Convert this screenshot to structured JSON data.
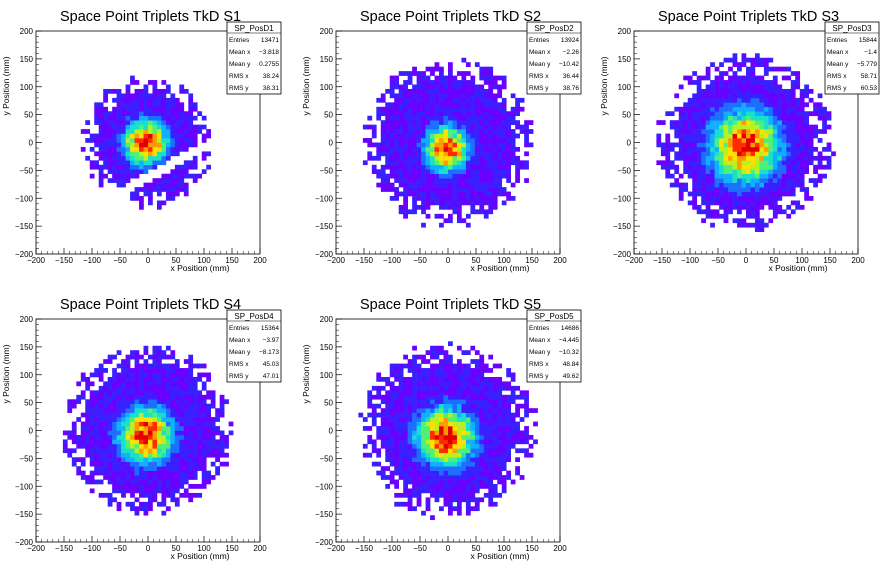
{
  "chart_data": [
    {
      "type": "heatmap",
      "title": "Space Point Triplets TkD S1",
      "xlabel": "x Position (mm)",
      "ylabel": "y Position (mm)",
      "xlim": [
        -200,
        200
      ],
      "ylim": [
        -200,
        200
      ],
      "x_ticks": [
        "−200",
        "−150",
        "−100",
        "−50",
        "0",
        "50",
        "100",
        "150",
        "200"
      ],
      "y_ticks": [
        "−200",
        "−150",
        "−100",
        "−50",
        "0",
        "50",
        "100",
        "150",
        "200"
      ],
      "grid": false,
      "legend_position": "top-right",
      "stats": {
        "name": "SP_PosD1",
        "rows": [
          {
            "label": "Entries",
            "value": "13471"
          },
          {
            "label": "Mean x",
            "value": "−3.818"
          },
          {
            "label": "Mean y",
            "value": "0.2755"
          },
          {
            "label": "RMS x",
            "value": "38.24"
          },
          {
            "label": "RMS y",
            "value": "38.31"
          }
        ]
      },
      "distribution": {
        "center_x": -3.818,
        "center_y": 0.2755,
        "rms_x": 38.24,
        "rms_y": 38.31,
        "radius": 115,
        "gap_band": true
      }
    },
    {
      "type": "heatmap",
      "title": "Space Point Triplets TkD S2",
      "xlabel": "x Position (mm)",
      "ylabel": "y Position (mm)",
      "xlim": [
        -200,
        200
      ],
      "ylim": [
        -200,
        200
      ],
      "x_ticks": [
        "−200",
        "−150",
        "−100",
        "−50",
        "0",
        "50",
        "100",
        "150",
        "200"
      ],
      "y_ticks": [
        "−200",
        "−150",
        "−100",
        "−50",
        "0",
        "50",
        "100",
        "150",
        "200"
      ],
      "grid": false,
      "legend_position": "top-right",
      "stats": {
        "name": "SP_PosD2",
        "rows": [
          {
            "label": "Entries",
            "value": "13924"
          },
          {
            "label": "Mean x",
            "value": "−2.26"
          },
          {
            "label": "Mean y",
            "value": "−10.42"
          },
          {
            "label": "RMS x",
            "value": "36.44"
          },
          {
            "label": "RMS y",
            "value": "38.76"
          }
        ]
      },
      "distribution": {
        "center_x": -2.26,
        "center_y": -10.42,
        "rms_x": 36.44,
        "rms_y": 38.76,
        "radius": 150,
        "gap_band": false
      }
    },
    {
      "type": "heatmap",
      "title": "Space Point Triplets TkD S3",
      "xlabel": "x Position (mm)",
      "ylabel": "y Position (mm)",
      "xlim": [
        -200,
        200
      ],
      "ylim": [
        -200,
        200
      ],
      "x_ticks": [
        "−200",
        "−150",
        "−100",
        "−50",
        "0",
        "50",
        "100",
        "150",
        "200"
      ],
      "y_ticks": [
        "−200",
        "−150",
        "−100",
        "−50",
        "0",
        "50",
        "100",
        "150",
        "200"
      ],
      "grid": false,
      "legend_position": "top-right",
      "stats": {
        "name": "SP_PosD3",
        "rows": [
          {
            "label": "Entries",
            "value": "15844"
          },
          {
            "label": "Mean x",
            "value": "−1.4"
          },
          {
            "label": "Mean y",
            "value": "−5.779"
          },
          {
            "label": "RMS x",
            "value": "58.71"
          },
          {
            "label": "RMS y",
            "value": "60.53"
          }
        ]
      },
      "distribution": {
        "center_x": -1.4,
        "center_y": -5.779,
        "rms_x": 58.71,
        "rms_y": 60.53,
        "radius": 155,
        "gap_band": false
      }
    },
    {
      "type": "heatmap",
      "title": "Space Point Triplets TkD S4",
      "xlabel": "x Position (mm)",
      "ylabel": "y Position (mm)",
      "xlim": [
        -200,
        200
      ],
      "ylim": [
        -200,
        200
      ],
      "x_ticks": [
        "−200",
        "−150",
        "−100",
        "−50",
        "0",
        "50",
        "100",
        "150",
        "200"
      ],
      "y_ticks": [
        "−200",
        "−150",
        "−100",
        "−50",
        "0",
        "50",
        "100",
        "150",
        "200"
      ],
      "grid": false,
      "legend_position": "top-right",
      "stats": {
        "name": "SP_PosD4",
        "rows": [
          {
            "label": "Entries",
            "value": "15364"
          },
          {
            "label": "Mean x",
            "value": "−3.97"
          },
          {
            "label": "Mean y",
            "value": "−8.173"
          },
          {
            "label": "RMS x",
            "value": "45.03"
          },
          {
            "label": "RMS y",
            "value": "47.01"
          }
        ]
      },
      "distribution": {
        "center_x": -3.97,
        "center_y": -8.173,
        "rms_x": 45.03,
        "rms_y": 47.01,
        "radius": 150,
        "gap_band": false
      }
    },
    {
      "type": "heatmap",
      "title": "Space Point Triplets TkD S5",
      "xlabel": "x Position (mm)",
      "ylabel": "y Position (mm)",
      "xlim": [
        -200,
        200
      ],
      "ylim": [
        -200,
        200
      ],
      "x_ticks": [
        "−200",
        "−150",
        "−100",
        "−50",
        "0",
        "50",
        "100",
        "150",
        "200"
      ],
      "y_ticks": [
        "−200",
        "−150",
        "−100",
        "−50",
        "0",
        "50",
        "100",
        "150",
        "200"
      ],
      "grid": false,
      "legend_position": "top-right",
      "stats": {
        "name": "SP_PosD5",
        "rows": [
          {
            "label": "Entries",
            "value": "14686"
          },
          {
            "label": "Mean x",
            "value": "−4.445"
          },
          {
            "label": "Mean y",
            "value": "−10.32"
          },
          {
            "label": "RMS x",
            "value": "48.84"
          },
          {
            "label": "RMS y",
            "value": "49.62"
          }
        ]
      },
      "distribution": {
        "center_x": -4.445,
        "center_y": -10.32,
        "rms_x": 48.84,
        "rms_y": 49.62,
        "radius": 155,
        "gap_band": false
      }
    }
  ],
  "colors": {
    "palette": [
      "#6a00ff",
      "#3a1fff",
      "#1d6fff",
      "#10b0ff",
      "#19e0c8",
      "#4ef07a",
      "#b8f020",
      "#ffe000",
      "#ff9a00",
      "#ff2a00",
      "#e00000"
    ],
    "frame": "#000000",
    "background": "#ffffff"
  }
}
